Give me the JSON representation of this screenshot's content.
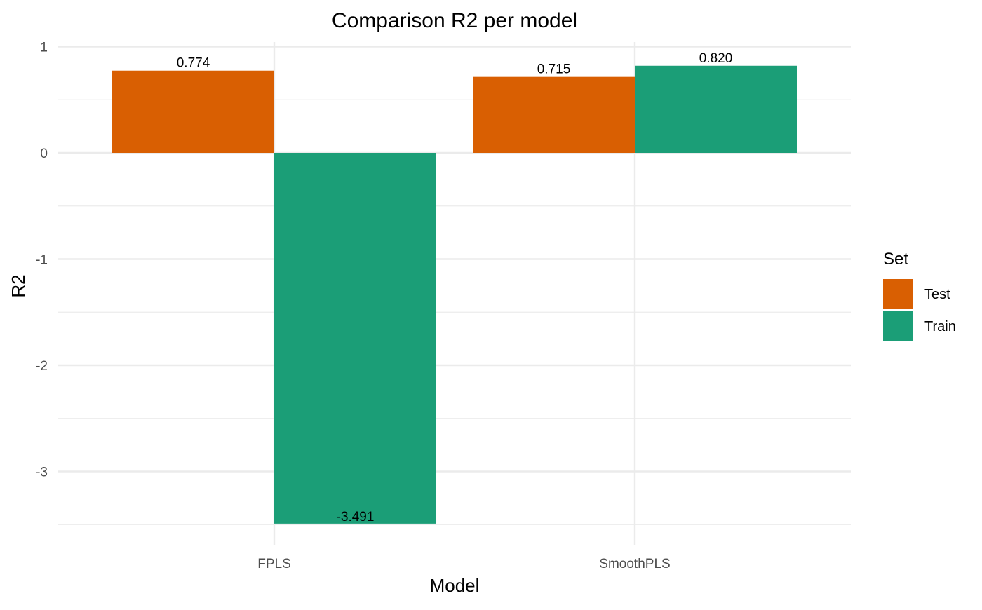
{
  "chart_data": {
    "type": "bar",
    "title": "Comparison R2 per model",
    "xlabel": "Model",
    "ylabel": "R2",
    "categories": [
      "FPLS",
      "SmoothPLS"
    ],
    "series": [
      {
        "name": "Test",
        "color": "#d95f02",
        "values": [
          0.774,
          0.715
        ],
        "labels": [
          "0.774",
          "0.715"
        ]
      },
      {
        "name": "Train",
        "color": "#1b9e77",
        "values": [
          -3.491,
          0.82
        ],
        "labels": [
          "-3.491",
          "0.820"
        ]
      }
    ],
    "ylim": [
      -3.5,
      1
    ],
    "yticks": [
      1,
      0,
      -1,
      -2,
      -3
    ],
    "ytick_labels": [
      "1",
      "0",
      "-1",
      "-2",
      "-3"
    ],
    "grid": true,
    "legend": {
      "title": "Set",
      "placement": "right",
      "items": [
        "Test",
        "Train"
      ]
    }
  }
}
